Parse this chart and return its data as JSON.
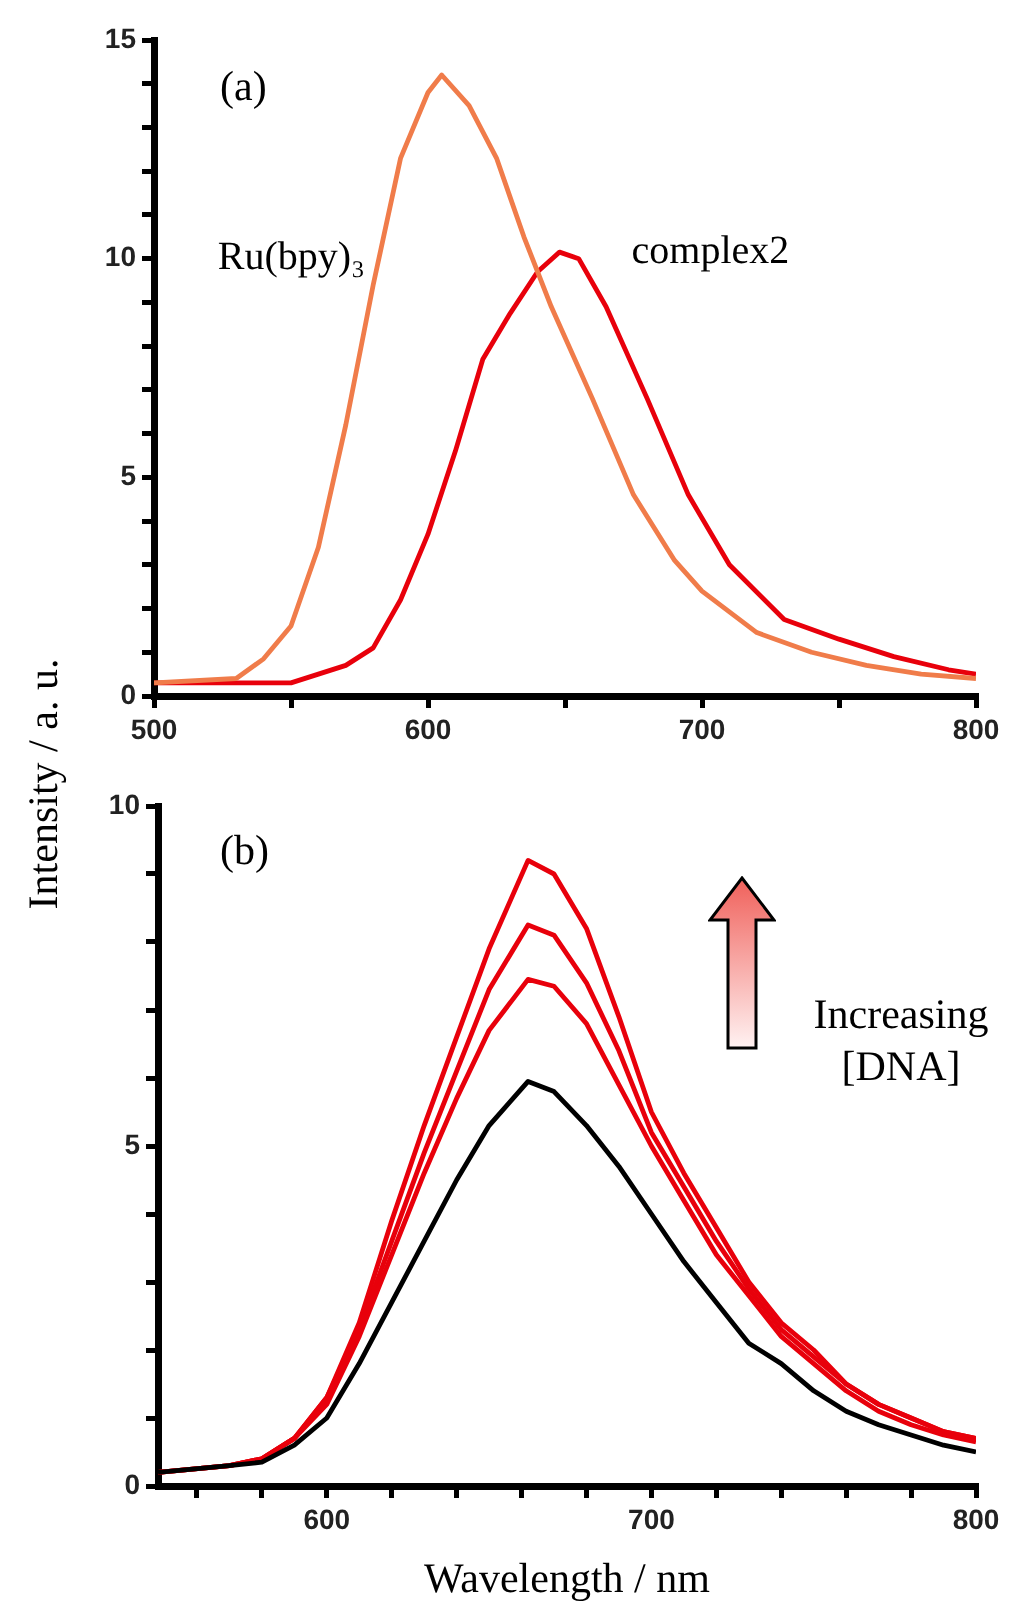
{
  "chart_data": [
    {
      "type": "line",
      "ylabel": "Intensity / a. u.",
      "annotations": [
        "(a)"
      ],
      "legend": false,
      "grid": false,
      "marker": "none",
      "line_style": "solid",
      "xlim": [
        500,
        800
      ],
      "ylim": [
        0,
        15
      ],
      "xticks": [
        500,
        {
          "value": 550,
          "label": null
        },
        600,
        {
          "value": 650,
          "label": null
        },
        700,
        {
          "value": 750,
          "label": null
        },
        800
      ],
      "yticks": [
        0,
        {
          "value": 1,
          "label": null
        },
        {
          "value": 2,
          "label": null
        },
        {
          "value": 3,
          "label": null
        },
        {
          "value": 4,
          "label": null
        },
        5,
        {
          "value": 6,
          "label": null
        },
        {
          "value": 7,
          "label": null
        },
        {
          "value": 8,
          "label": null
        },
        {
          "value": 9,
          "label": null
        },
        10,
        {
          "value": 11,
          "label": null
        },
        {
          "value": 12,
          "label": null
        },
        {
          "value": 13,
          "label": null
        },
        {
          "value": 14,
          "label": null
        },
        15
      ],
      "series": [
        {
          "name": "Ru(bpy)₃",
          "color": "#f07c4a",
          "x": [
            500,
            530,
            540,
            550,
            560,
            570,
            580,
            590,
            600,
            605,
            615,
            625,
            635,
            645,
            660,
            675,
            690,
            700,
            720,
            740,
            760,
            780,
            800
          ],
          "values": [
            0.3,
            0.4,
            0.85,
            1.6,
            3.4,
            6.2,
            9.4,
            12.3,
            13.8,
            14.2,
            13.5,
            12.3,
            10.5,
            8.9,
            6.8,
            4.6,
            3.1,
            2.4,
            1.45,
            1.0,
            0.7,
            0.5,
            0.4
          ]
        },
        {
          "name": "complex2",
          "color": "#e8000b",
          "x": [
            500,
            550,
            560,
            570,
            580,
            590,
            600,
            610,
            620,
            630,
            640,
            648,
            655,
            665,
            680,
            695,
            710,
            730,
            750,
            770,
            790,
            800
          ],
          "values": [
            0.3,
            0.3,
            0.5,
            0.7,
            1.1,
            2.2,
            3.7,
            5.6,
            7.7,
            8.75,
            9.7,
            10.15,
            10.0,
            8.9,
            6.8,
            4.6,
            3.0,
            1.75,
            1.3,
            0.9,
            0.6,
            0.5
          ]
        }
      ]
    },
    {
      "type": "line",
      "xlabel": "Wavelength / nm",
      "annotations": [
        "(b)",
        "Increasing [DNA]"
      ],
      "legend": false,
      "grid": false,
      "marker": "none",
      "line_style": "solid",
      "xlim": [
        548,
        800
      ],
      "ylim": [
        0,
        10
      ],
      "xticks": [
        {
          "value": 560,
          "label": null
        },
        {
          "value": 580,
          "label": null
        },
        600,
        {
          "value": 620,
          "label": null
        },
        {
          "value": 640,
          "label": null
        },
        {
          "value": 660,
          "label": null
        },
        {
          "value": 680,
          "label": null
        },
        700,
        {
          "value": 720,
          "label": null
        },
        {
          "value": 740,
          "label": null
        },
        {
          "value": 760,
          "label": null
        },
        {
          "value": 780,
          "label": null
        },
        800
      ],
      "yticks": [
        0,
        {
          "value": 1,
          "label": null
        },
        {
          "value": 2,
          "label": null
        },
        {
          "value": 3,
          "label": null
        },
        {
          "value": 4,
          "label": null
        },
        5,
        {
          "value": 6,
          "label": null
        },
        {
          "value": 7,
          "label": null
        },
        {
          "value": 8,
          "label": null
        },
        {
          "value": 9,
          "label": null
        },
        10
      ],
      "x": [
        548,
        570,
        580,
        590,
        600,
        610,
        620,
        630,
        640,
        650,
        662,
        670,
        680,
        690,
        700,
        710,
        720,
        730,
        740,
        750,
        760,
        770,
        780,
        790,
        800
      ],
      "series": [
        {
          "color": "#000000",
          "values": [
            0.2,
            0.3,
            0.35,
            0.6,
            1.0,
            1.8,
            2.7,
            3.6,
            4.5,
            5.3,
            5.95,
            5.8,
            5.3,
            4.7,
            4.0,
            3.3,
            2.7,
            2.1,
            1.8,
            1.4,
            1.1,
            0.9,
            0.75,
            0.6,
            0.5
          ]
        },
        {
          "color": "#e8000b",
          "values": [
            0.2,
            0.3,
            0.4,
            0.7,
            1.2,
            2.2,
            3.4,
            4.6,
            5.7,
            6.7,
            7.45,
            7.35,
            6.8,
            5.9,
            5.0,
            4.2,
            3.4,
            2.8,
            2.2,
            1.8,
            1.4,
            1.1,
            0.9,
            0.75,
            0.65
          ]
        },
        {
          "color": "#e8000b",
          "values": [
            0.2,
            0.3,
            0.4,
            0.7,
            1.3,
            2.3,
            3.6,
            4.9,
            6.1,
            7.3,
            8.25,
            8.1,
            7.4,
            6.4,
            5.2,
            4.4,
            3.6,
            2.9,
            2.3,
            1.9,
            1.5,
            1.2,
            1.0,
            0.8,
            0.7
          ]
        },
        {
          "color": "#e8000b",
          "values": [
            0.2,
            0.3,
            0.4,
            0.7,
            1.3,
            2.4,
            3.9,
            5.3,
            6.6,
            7.9,
            9.2,
            9.0,
            8.2,
            6.9,
            5.5,
            4.6,
            3.8,
            3.0,
            2.4,
            2.0,
            1.5,
            1.2,
            1.0,
            0.8,
            0.7
          ]
        }
      ]
    }
  ]
}
